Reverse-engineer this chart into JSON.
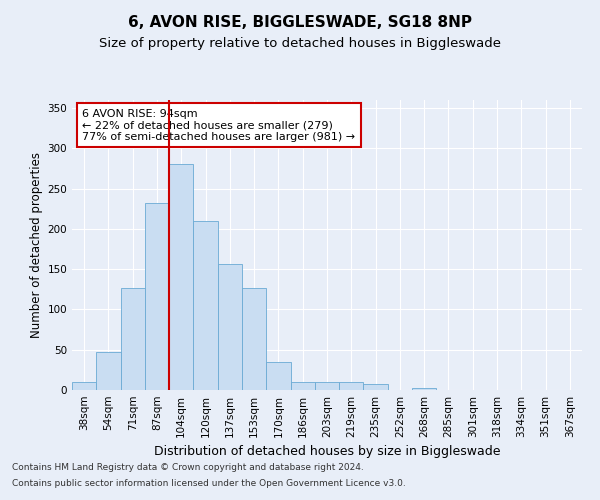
{
  "title": "6, AVON RISE, BIGGLESWADE, SG18 8NP",
  "subtitle": "Size of property relative to detached houses in Biggleswade",
  "xlabel": "Distribution of detached houses by size in Biggleswade",
  "ylabel": "Number of detached properties",
  "footnote1": "Contains HM Land Registry data © Crown copyright and database right 2024.",
  "footnote2": "Contains public sector information licensed under the Open Government Licence v3.0.",
  "categories": [
    "38sqm",
    "54sqm",
    "71sqm",
    "87sqm",
    "104sqm",
    "120sqm",
    "137sqm",
    "153sqm",
    "170sqm",
    "186sqm",
    "203sqm",
    "219sqm",
    "235sqm",
    "252sqm",
    "268sqm",
    "285sqm",
    "301sqm",
    "318sqm",
    "334sqm",
    "351sqm",
    "367sqm"
  ],
  "values": [
    10,
    47,
    127,
    232,
    280,
    210,
    157,
    127,
    35,
    10,
    10,
    10,
    8,
    0,
    3,
    0,
    0,
    0,
    0,
    0,
    0
  ],
  "bar_color": "#c9ddf2",
  "bar_edge_color": "#6aaad4",
  "vline_x": 3.5,
  "vline_color": "#cc0000",
  "annotation_title": "6 AVON RISE: 94sqm",
  "annotation_line1": "← 22% of detached houses are smaller (279)",
  "annotation_line2": "77% of semi-detached houses are larger (981) →",
  "annotation_box_color": "#ffffff",
  "annotation_box_edge": "#cc0000",
  "ylim": [
    0,
    360
  ],
  "yticks": [
    0,
    50,
    100,
    150,
    200,
    250,
    300,
    350
  ],
  "background_color": "#e8eef8",
  "plot_background": "#e8eef8",
  "grid_color": "#ffffff",
  "title_fontsize": 11,
  "subtitle_fontsize": 9.5,
  "xlabel_fontsize": 9,
  "ylabel_fontsize": 8.5,
  "tick_fontsize": 7.5,
  "annotation_fontsize": 8,
  "footnote_fontsize": 6.5
}
